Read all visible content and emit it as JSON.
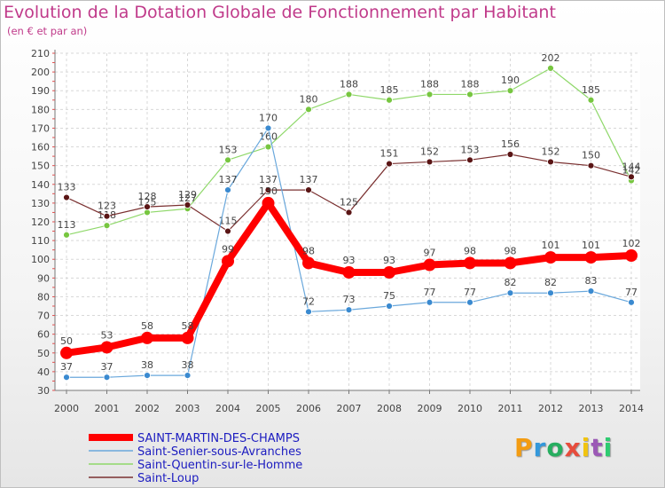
{
  "chart_data": {
    "type": "line",
    "title": "Evolution de la Dotation Globale de Fonctionnement par Habitant",
    "subtitle": "(en € et par an)",
    "xlabel": "",
    "ylabel": "",
    "ylim": [
      30,
      210
    ],
    "y_ticks": [
      30,
      40,
      50,
      60,
      70,
      80,
      90,
      100,
      110,
      120,
      130,
      140,
      150,
      160,
      170,
      180,
      190,
      200,
      210
    ],
    "categories": [
      "2000",
      "2001",
      "2002",
      "2003",
      "2004",
      "2005",
      "2006",
      "2007",
      "2008",
      "2009",
      "2010",
      "2011",
      "2012",
      "2013",
      "2014"
    ],
    "grid": true,
    "legend_position": "bottom-left",
    "series": [
      {
        "name": "Saint-Quentin-sur-le-Homme",
        "color": "#8fd86a",
        "marker": "#77c640",
        "width": 1.2,
        "radius": 3.5,
        "values": [
          113,
          118,
          125,
          127,
          153,
          160,
          180,
          188,
          185,
          188,
          188,
          190,
          202,
          185,
          142
        ]
      },
      {
        "name": "Saint-Loup",
        "color": "#7a3030",
        "marker": "#5a1515",
        "width": 1.2,
        "radius": 3.5,
        "values": [
          133,
          123,
          128,
          129,
          115,
          137,
          137,
          125,
          151,
          152,
          153,
          156,
          152,
          150,
          144
        ]
      },
      {
        "name": "Saint-Senier-sous-Avranches",
        "color": "#6aa8dc",
        "marker": "#3a8ad0",
        "width": 1.2,
        "radius": 3.5,
        "values": [
          37,
          37,
          38,
          38,
          137,
          170,
          72,
          73,
          75,
          77,
          77,
          82,
          82,
          83,
          77
        ]
      },
      {
        "name": "SAINT-MARTIN-DES-CHAMPS",
        "color": "#ff0000",
        "marker": "#ff0000",
        "width": 8,
        "radius": 7,
        "values": [
          50,
          53,
          58,
          58,
          99,
          130,
          98,
          93,
          93,
          97,
          98,
          98,
          101,
          101,
          102
        ]
      }
    ],
    "legend": [
      {
        "name": "SAINT-MARTIN-DES-CHAMPS",
        "color": "#ff0000",
        "width": 8
      },
      {
        "name": "Saint-Senier-sous-Avranches",
        "color": "#6aa8dc",
        "width": 1.5
      },
      {
        "name": "Saint-Quentin-sur-le-Homme",
        "color": "#8fd86a",
        "width": 1.5
      },
      {
        "name": "Saint-Loup",
        "color": "#7a3030",
        "width": 1.5
      }
    ]
  },
  "logo": {
    "letters": [
      "P",
      "r",
      "o",
      "x",
      "i",
      "t",
      "i"
    ],
    "colors": [
      "#f39c12",
      "#3498db",
      "#27ae60",
      "#e74c3c",
      "#f1c40f",
      "#9b59b6",
      "#2ecc71"
    ]
  }
}
